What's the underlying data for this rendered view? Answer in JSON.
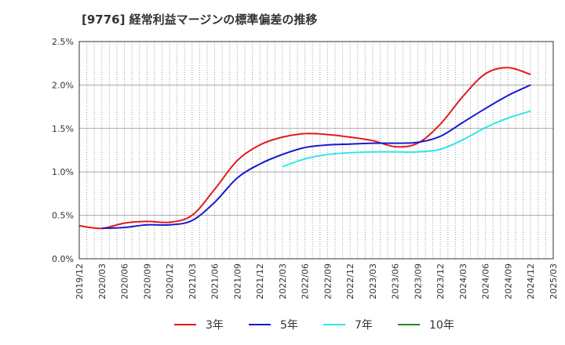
{
  "chart_data": {
    "type": "line",
    "title": "[9776]  経常利益マージンの標準偏差の推移",
    "xlabel": "",
    "ylabel": "",
    "ylim": [
      0,
      0.025
    ],
    "grid": true,
    "legend_position": "bottom",
    "x_ticks": [
      "2019/12",
      "2020/03",
      "2020/06",
      "2020/09",
      "2020/12",
      "2021/03",
      "2021/06",
      "2021/09",
      "2021/12",
      "2022/03",
      "2022/06",
      "2022/09",
      "2022/12",
      "2023/03",
      "2023/06",
      "2023/09",
      "2023/12",
      "2024/03",
      "2024/06",
      "2024/09",
      "2024/12",
      "2025/03"
    ],
    "y_ticks": [
      {
        "value": 0,
        "label": "0.0%"
      },
      {
        "value": 0.005,
        "label": "0.5%"
      },
      {
        "value": 0.01,
        "label": "1.0%"
      },
      {
        "value": 0.015,
        "label": "1.5%"
      },
      {
        "value": 0.02,
        "label": "2.0%"
      },
      {
        "value": 0.025,
        "label": "2.5%"
      }
    ],
    "series": [
      {
        "name": "3年",
        "color": "#e31a1c",
        "x": [
          "2019/12",
          "2020/03",
          "2020/06",
          "2020/09",
          "2020/12",
          "2021/03",
          "2021/06",
          "2021/09",
          "2021/12",
          "2022/03",
          "2022/06",
          "2022/09",
          "2022/12",
          "2023/03",
          "2023/06",
          "2023/09",
          "2023/12",
          "2024/03",
          "2024/06",
          "2024/09",
          "2024/12"
        ],
        "values": [
          0.0038,
          0.0035,
          0.0041,
          0.0043,
          0.0042,
          0.005,
          0.008,
          0.0113,
          0.0131,
          0.014,
          0.0144,
          0.0143,
          0.014,
          0.0136,
          0.0129,
          0.0133,
          0.0155,
          0.0187,
          0.0213,
          0.022,
          0.0212
        ]
      },
      {
        "name": "5年",
        "color": "#1a1acd",
        "x": [
          "2020/03",
          "2020/06",
          "2020/09",
          "2020/12",
          "2021/03",
          "2021/06",
          "2021/09",
          "2021/12",
          "2022/03",
          "2022/06",
          "2022/09",
          "2022/12",
          "2023/03",
          "2023/06",
          "2023/09",
          "2023/12",
          "2024/03",
          "2024/06",
          "2024/09",
          "2024/12"
        ],
        "values": [
          0.0035,
          0.0036,
          0.0039,
          0.0039,
          0.0044,
          0.0065,
          0.0093,
          0.0109,
          0.012,
          0.0128,
          0.0131,
          0.0132,
          0.0133,
          0.0133,
          0.0134,
          0.0141,
          0.0157,
          0.0173,
          0.0188,
          0.02
        ]
      },
      {
        "name": "7年",
        "color": "#33e6e6",
        "x": [
          "2022/03",
          "2022/06",
          "2022/09",
          "2022/12",
          "2023/03",
          "2023/06",
          "2023/09",
          "2023/12",
          "2024/03",
          "2024/06",
          "2024/09",
          "2024/12"
        ],
        "values": [
          0.0106,
          0.0115,
          0.012,
          0.0122,
          0.0123,
          0.0123,
          0.0123,
          0.0126,
          0.0137,
          0.0151,
          0.0162,
          0.017
        ]
      },
      {
        "name": "10年",
        "color": "#228b22",
        "x": [],
        "values": []
      }
    ]
  }
}
